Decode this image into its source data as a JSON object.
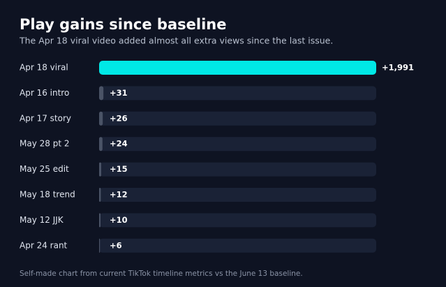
{
  "chart_data": {
    "type": "bar",
    "orientation": "horizontal",
    "title": "Play gains since baseline",
    "subtitle": "The Apr 18 viral video added almost all extra views since the last issue.",
    "categories": [
      "Apr 18 viral",
      "Apr 16 intro",
      "Apr 17 story",
      "May 28 pt 2",
      "May 25 edit",
      "May 18 trend",
      "May 12 JJK",
      "Apr 24 rant"
    ],
    "values": [
      1991,
      31,
      26,
      24,
      15,
      12,
      10,
      6
    ],
    "value_labels": [
      "+1,991",
      "+31",
      "+26",
      "+24",
      "+15",
      "+12",
      "+10",
      "+6"
    ],
    "colors": [
      "#00e8e6",
      "#4a5366",
      "#4a5366",
      "#4a5366",
      "#4a5366",
      "#4a5366",
      "#4a5366",
      "#4a5366"
    ],
    "xlim": [
      0,
      1991
    ],
    "footnote": "Self-made chart from current TikTok timeline metrics vs the June 13 baseline."
  }
}
